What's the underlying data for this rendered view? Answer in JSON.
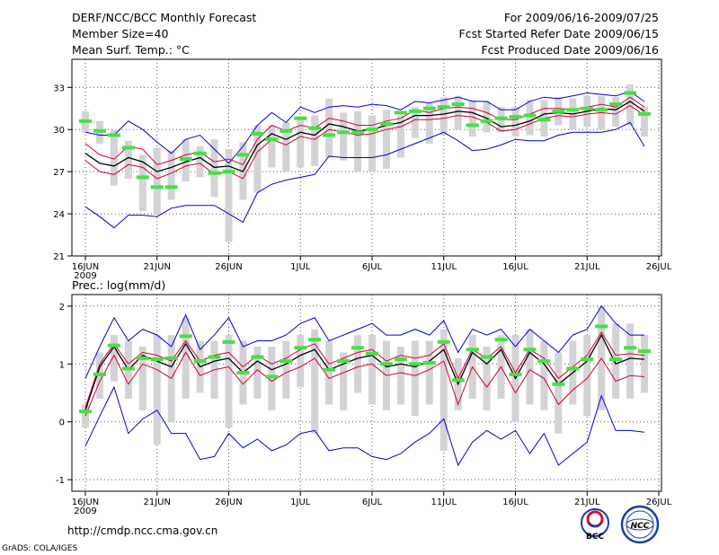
{
  "header": {
    "title": "DERF/NCC/BCC Monthly Forecast",
    "member_size": "Member Size=40",
    "variable1": "Mean Surf. Temp.: °C",
    "period": "For 2009/06/16-2009/07/25",
    "refer_date": "Fcst Started Refer Date 2009/06/15",
    "produced_date": "Fcst Produced Date 2009/06/16"
  },
  "footer": {
    "url": "http://cmdp.ncc.cma.gov.cn",
    "grads": "GrADS: COLA/IGES",
    "logo_bcc": "BCC",
    "logo_ncc": "NCC"
  },
  "colors": {
    "bar": "#d3d3d7",
    "green": "#44e144",
    "red": "#d8002e",
    "blue": "#0000dd",
    "mean": "#000000"
  },
  "chart_data": [
    {
      "type": "line",
      "title": "Mean Surf. Temp.: °C",
      "ylim": [
        21,
        35
      ],
      "yticks": [
        21,
        24,
        27,
        30,
        33
      ],
      "xticks": [
        {
          "day": 0,
          "label": "16JUN"
        },
        {
          "day": 5,
          "label": "21JUN"
        },
        {
          "day": 10,
          "label": "26JUN"
        },
        {
          "day": 15,
          "label": "1JUL"
        },
        {
          "day": 20,
          "label": "6JUL"
        },
        {
          "day": 25,
          "label": "11JUL"
        },
        {
          "day": 30,
          "label": "16JUL"
        },
        {
          "day": 35,
          "label": "21JUL"
        },
        {
          "day": 40,
          "label": "26JUL"
        }
      ],
      "year_label": "2009",
      "grid": true,
      "days": [
        0,
        1,
        2,
        3,
        4,
        5,
        6,
        7,
        8,
        9,
        10,
        11,
        12,
        13,
        14,
        15,
        16,
        17,
        18,
        19,
        20,
        21,
        22,
        23,
        24,
        25,
        26,
        27,
        28,
        29,
        30,
        31,
        32,
        33,
        34,
        35,
        36,
        37,
        38,
        39
      ],
      "bar_low": [
        29.8,
        29.0,
        26.0,
        26.5,
        24.2,
        24.0,
        25.0,
        26.3,
        26.6,
        25.2,
        22.0,
        25.0,
        25.5,
        27.3,
        27.0,
        27.3,
        27.4,
        28.0,
        27.8,
        27.0,
        27.0,
        27.2,
        28.0,
        29.4,
        29.0,
        29.6,
        30.0,
        29.5,
        29.8,
        29.8,
        29.5,
        29.6,
        29.5,
        30.3,
        30.0,
        30.2,
        30.0,
        30.2,
        30.3,
        29.5
      ],
      "bar_high": [
        31.3,
        30.6,
        30.0,
        29.2,
        28.2,
        28.7,
        28.5,
        29.3,
        28.8,
        29.3,
        28.6,
        29.1,
        30.3,
        30.3,
        30.5,
        30.7,
        31.0,
        32.2,
        31.2,
        31.3,
        31.0,
        31.4,
        31.0,
        31.6,
        31.9,
        32.3,
        32.4,
        32.1,
        32.0,
        31.6,
        31.6,
        32.1,
        32.1,
        32.3,
        32.2,
        32.4,
        32.4,
        32.3,
        33.2,
        31.6
      ],
      "green": [
        30.6,
        29.9,
        29.6,
        28.7,
        26.6,
        25.9,
        25.9,
        27.9,
        28.3,
        26.9,
        27.0,
        28.2,
        29.7,
        29.3,
        29.9,
        30.8,
        30.1,
        29.6,
        29.8,
        29.8,
        30.0,
        30.4,
        31.2,
        31.3,
        31.5,
        31.6,
        31.8,
        30.3,
        30.6,
        30.8,
        30.9,
        31.0,
        30.7,
        31.3,
        31.4,
        31.5,
        31.4,
        31.8,
        32.6,
        31.1
      ],
      "series": [
        {
          "name": "upper",
          "color": "blue",
          "values": [
            29.8,
            29.6,
            29.6,
            30.6,
            30.0,
            29.1,
            28.3,
            29.3,
            29.6,
            28.6,
            27.6,
            28.8,
            30.3,
            31.2,
            30.5,
            31.6,
            31.2,
            31.6,
            31.7,
            31.6,
            31.8,
            31.7,
            31.4,
            32.0,
            31.9,
            32.1,
            32.3,
            32.0,
            32.0,
            31.4,
            31.4,
            32.0,
            32.3,
            32.2,
            32.4,
            32.6,
            32.5,
            32.4,
            32.7,
            32.0
          ]
        },
        {
          "name": "p75",
          "color": "red",
          "values": [
            29.0,
            28.2,
            27.9,
            28.8,
            28.6,
            27.5,
            27.8,
            28.2,
            28.4,
            27.7,
            27.9,
            27.5,
            29.3,
            30.3,
            29.9,
            30.3,
            30.1,
            30.8,
            30.6,
            30.3,
            30.3,
            30.6,
            30.8,
            31.4,
            31.2,
            31.5,
            31.6,
            31.5,
            31.2,
            30.7,
            30.7,
            31.1,
            31.5,
            31.5,
            31.4,
            31.6,
            31.8,
            31.6,
            32.3,
            31.6
          ]
        },
        {
          "name": "mean",
          "color": "mean",
          "values": [
            28.3,
            27.6,
            27.4,
            28.0,
            27.7,
            27.0,
            27.3,
            27.7,
            28.0,
            27.3,
            27.4,
            27.0,
            28.9,
            29.7,
            29.3,
            29.8,
            29.6,
            30.4,
            30.2,
            29.9,
            30.0,
            30.3,
            30.5,
            31.0,
            31.0,
            31.1,
            31.3,
            31.2,
            30.8,
            30.2,
            30.3,
            30.6,
            31.1,
            31.2,
            31.1,
            31.3,
            31.5,
            31.4,
            32.0,
            31.3
          ]
        },
        {
          "name": "p25",
          "color": "red",
          "values": [
            27.8,
            27.0,
            26.8,
            27.5,
            27.3,
            26.5,
            26.9,
            27.4,
            27.6,
            26.8,
            27.0,
            26.5,
            28.4,
            29.3,
            28.9,
            29.5,
            29.3,
            30.0,
            29.8,
            29.6,
            29.7,
            30.0,
            30.2,
            30.7,
            30.7,
            30.8,
            31.0,
            30.9,
            30.5,
            29.9,
            30.0,
            30.4,
            30.8,
            31.0,
            30.9,
            31.1,
            31.2,
            31.1,
            31.7,
            31.0
          ]
        },
        {
          "name": "lower",
          "color": "blue",
          "values": [
            24.5,
            23.8,
            23.0,
            23.9,
            23.9,
            23.8,
            24.4,
            24.6,
            24.6,
            24.6,
            24.0,
            23.4,
            25.5,
            26.1,
            26.4,
            26.6,
            26.8,
            28.1,
            28.0,
            28.0,
            28.0,
            28.2,
            28.6,
            29.0,
            29.4,
            29.8,
            29.2,
            28.5,
            28.6,
            28.9,
            29.3,
            29.2,
            29.2,
            29.6,
            29.8,
            29.8,
            29.8,
            30.0,
            30.5,
            28.8
          ]
        }
      ]
    },
    {
      "type": "line",
      "title": "Prec.: log(mm/d)",
      "ylim": [
        -1.2,
        2.2
      ],
      "yticks": [
        -1,
        0,
        1,
        2
      ],
      "xticks": [
        {
          "day": 0,
          "label": "16JUN"
        },
        {
          "day": 5,
          "label": "21JUN"
        },
        {
          "day": 10,
          "label": "26JUN"
        },
        {
          "day": 15,
          "label": "1JUL"
        },
        {
          "day": 20,
          "label": "6JUL"
        },
        {
          "day": 25,
          "label": "11JUL"
        },
        {
          "day": 30,
          "label": "16JUL"
        },
        {
          "day": 35,
          "label": "21JUL"
        },
        {
          "day": 40,
          "label": "26JUL"
        }
      ],
      "year_label": "2009",
      "grid": true,
      "days": [
        0,
        1,
        2,
        3,
        4,
        5,
        6,
        7,
        8,
        9,
        10,
        11,
        12,
        13,
        14,
        15,
        16,
        17,
        18,
        19,
        20,
        21,
        22,
        23,
        24,
        25,
        26,
        27,
        28,
        29,
        30,
        31,
        32,
        33,
        34,
        35,
        36,
        37,
        38,
        39
      ],
      "bar_low": [
        -0.1,
        0.4,
        0.7,
        0.4,
        0.2,
        -0.4,
        0.0,
        0.4,
        0.5,
        0.4,
        -0.1,
        0.3,
        0.4,
        0.2,
        0.4,
        0.6,
        -0.2,
        0.3,
        0.2,
        0.5,
        0.3,
        0.2,
        0.3,
        0.1,
        0.3,
        -0.5,
        0.2,
        0.4,
        0.2,
        0.4,
        0.0,
        0.3,
        0.2,
        -0.2,
        0.3,
        0.1,
        0.2,
        0.4,
        0.4,
        0.5
      ],
      "bar_high": [
        0.3,
        1.2,
        1.5,
        1.4,
        1.3,
        1.5,
        1.5,
        1.8,
        1.4,
        1.4,
        1.5,
        1.4,
        1.3,
        1.3,
        1.4,
        1.5,
        1.6,
        1.4,
        1.2,
        1.5,
        1.5,
        1.4,
        1.3,
        1.4,
        1.4,
        1.6,
        1.1,
        1.5,
        1.3,
        1.5,
        1.5,
        1.6,
        1.4,
        1.2,
        1.4,
        1.5,
        2.0,
        1.7,
        1.7,
        1.5
      ],
      "green": [
        0.18,
        0.82,
        1.32,
        0.92,
        1.1,
        1.08,
        1.1,
        1.48,
        1.05,
        1.12,
        1.38,
        0.85,
        1.12,
        0.78,
        1.05,
        1.28,
        1.42,
        0.9,
        1.05,
        1.28,
        1.18,
        1.0,
        1.08,
        1.0,
        1.02,
        1.38,
        0.72,
        1.25,
        1.12,
        1.42,
        0.82,
        1.25,
        1.05,
        0.65,
        0.92,
        1.08,
        1.65,
        1.08,
        1.28,
        1.22
      ],
      "series": [
        {
          "name": "upper",
          "color": "blue",
          "values": [
            0.75,
            1.3,
            1.8,
            1.4,
            1.6,
            1.5,
            1.3,
            1.85,
            1.25,
            1.5,
            1.8,
            1.3,
            1.4,
            1.4,
            1.5,
            1.7,
            1.8,
            1.4,
            1.5,
            1.6,
            1.7,
            1.5,
            1.5,
            1.6,
            1.5,
            1.75,
            1.2,
            1.6,
            1.5,
            1.6,
            1.3,
            1.6,
            1.4,
            1.2,
            1.5,
            1.6,
            2.0,
            1.7,
            1.5,
            1.5
          ]
        },
        {
          "name": "p75",
          "color": "red",
          "values": [
            0.25,
            1.0,
            1.35,
            1.0,
            1.2,
            1.15,
            1.05,
            1.4,
            1.05,
            1.15,
            1.2,
            0.95,
            1.15,
            1.0,
            1.1,
            1.25,
            1.35,
            1.0,
            1.1,
            1.2,
            1.25,
            1.05,
            1.15,
            1.1,
            1.15,
            1.35,
            0.75,
            1.25,
            1.1,
            1.3,
            0.85,
            1.25,
            1.1,
            0.75,
            0.95,
            1.15,
            1.55,
            1.15,
            1.18,
            1.15
          ]
        },
        {
          "name": "mean",
          "color": "mean",
          "values": [
            0.2,
            0.95,
            1.3,
            0.9,
            1.15,
            1.05,
            0.95,
            1.35,
            0.95,
            1.05,
            1.1,
            0.85,
            1.05,
            0.9,
            1.0,
            1.15,
            1.25,
            0.9,
            1.0,
            1.1,
            1.15,
            0.95,
            1.0,
            0.95,
            1.05,
            1.25,
            0.65,
            1.2,
            1.0,
            1.25,
            0.75,
            1.2,
            1.0,
            0.65,
            0.85,
            1.05,
            1.5,
            1.0,
            1.1,
            1.08
          ]
        },
        {
          "name": "p25",
          "color": "red",
          "values": [
            0.1,
            0.7,
            1.15,
            0.65,
            1.0,
            0.9,
            0.75,
            1.2,
            0.8,
            0.9,
            0.95,
            0.65,
            0.9,
            0.7,
            0.85,
            0.95,
            1.1,
            0.75,
            0.85,
            0.95,
            1.0,
            0.8,
            0.85,
            0.8,
            0.9,
            1.05,
            0.3,
            0.95,
            0.6,
            0.95,
            0.5,
            0.9,
            0.75,
            0.3,
            0.55,
            0.75,
            1.1,
            0.7,
            0.8,
            0.78
          ]
        },
        {
          "name": "lower",
          "color": "blue",
          "values": [
            -0.42,
            0.1,
            0.6,
            -0.2,
            0.05,
            0.2,
            -0.2,
            -0.2,
            -0.65,
            -0.6,
            -0.2,
            -0.45,
            -0.3,
            -0.5,
            -0.4,
            -0.2,
            -0.15,
            -0.5,
            -0.45,
            -0.45,
            -0.6,
            -0.65,
            -0.55,
            -0.35,
            -0.2,
            0.05,
            -0.75,
            -0.35,
            -0.15,
            -0.3,
            -0.15,
            -0.55,
            -0.2,
            -0.75,
            -0.55,
            -0.35,
            0.45,
            -0.15,
            -0.15,
            -0.18
          ]
        }
      ]
    }
  ]
}
